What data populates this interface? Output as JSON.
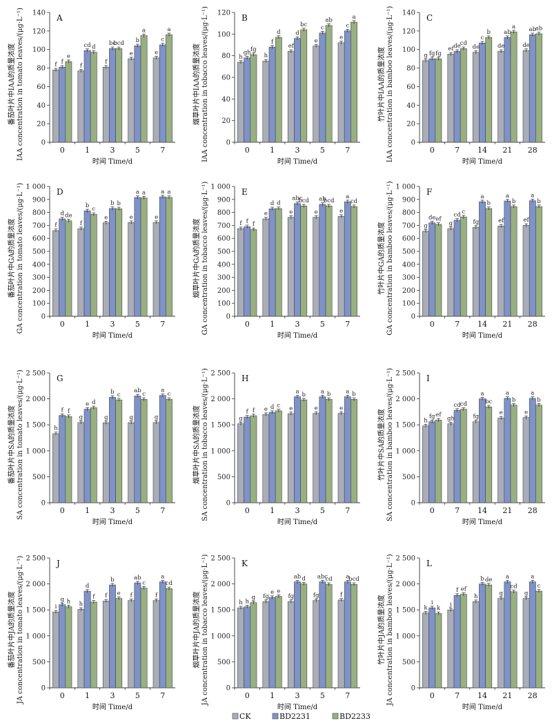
{
  "colors": {
    "CK": "#a9adb8",
    "BD2231": "#7f93c9",
    "BD2233": "#98b081"
  },
  "legend": [
    "CK",
    "BD2231",
    "BD2233"
  ],
  "chart_data": [
    {
      "panel": "A",
      "type": "bar",
      "categories": [
        "0",
        "1",
        "3",
        "5",
        "7"
      ],
      "ylim": [
        0,
        140
      ],
      "yticks": [
        0,
        20,
        40,
        60,
        80,
        100,
        120,
        140
      ],
      "ytick_labels": [
        "0",
        "20",
        "40",
        "60",
        "80",
        "100",
        "120",
        "140"
      ],
      "ylabel_cn": "番茄叶片中IAA的质量浓度",
      "ylabel_en": "IAA concentration in tomato leaves/(μg·L⁻¹)",
      "xlabel": "时间 Time/d",
      "series": [
        {
          "name": "CK",
          "values": [
            78,
            77,
            81,
            90,
            91
          ],
          "letters": [
            "f",
            "f",
            "f",
            "e",
            "e"
          ]
        },
        {
          "name": "BD2231",
          "values": [
            81,
            99,
            101,
            104,
            105
          ],
          "letters": [
            "f",
            "cd",
            "bc",
            "b",
            "c"
          ]
        },
        {
          "name": "BD2233",
          "values": [
            87,
            97,
            101,
            115,
            116
          ],
          "letters": [
            "e",
            "d",
            "bcd",
            "a",
            "a"
          ]
        }
      ]
    },
    {
      "panel": "B",
      "type": "bar",
      "categories": [
        "0",
        "1",
        "3",
        "5",
        "7"
      ],
      "ylim": [
        0,
        120
      ],
      "yticks": [
        0,
        20,
        40,
        60,
        80,
        100,
        120
      ],
      "ytick_labels": [
        "0",
        "20",
        "40",
        "60",
        "80",
        "100",
        "120"
      ],
      "ylabel_cn": "烟草叶片中IAA的质量浓度",
      "ylabel_en": "IAA concentration in tobacco leaves/(μg·L⁻¹)",
      "xlabel": "时间 Time/d",
      "series": [
        {
          "name": "CK",
          "values": [
            74,
            75,
            84,
            89,
            92
          ],
          "letters": [
            "h",
            "h",
            "ef",
            "e",
            "e"
          ]
        },
        {
          "name": "BD2231",
          "values": [
            78,
            88,
            96,
            101,
            103
          ],
          "letters": [
            "gh",
            "f",
            "d",
            "c",
            "c"
          ]
        },
        {
          "name": "BD2233",
          "values": [
            81,
            97,
            104,
            108,
            111
          ],
          "letters": [
            "fg",
            "d",
            "bc",
            "ab",
            "a"
          ]
        }
      ]
    },
    {
      "panel": "C",
      "type": "bar",
      "categories": [
        "0",
        "7",
        "14",
        "21",
        "28"
      ],
      "ylim": [
        0,
        140
      ],
      "yticks": [
        0,
        20,
        40,
        60,
        80,
        100,
        120,
        140
      ],
      "ytick_labels": [
        "0",
        "20",
        "40",
        "60",
        "80",
        "100",
        "120",
        "140"
      ],
      "ylabel_cn": "竹叶片中IAA的质量浓度",
      "ylabel_en": "IAA concentration in bamboo leaves/(μg·L⁻¹)",
      "xlabel": "时间 Time/d",
      "series": [
        {
          "name": "CK",
          "values": [
            88,
            95,
            97,
            98,
            99
          ],
          "letters": [
            "g",
            "ef",
            "de",
            "de",
            "de"
          ]
        },
        {
          "name": "BD2231",
          "values": [
            90,
            98,
            107,
            113,
            116
          ],
          "letters": [
            "fg",
            "de",
            "c",
            "ab",
            "ab"
          ]
        },
        {
          "name": "BD2233",
          "values": [
            90,
            101,
            113,
            119,
            117
          ],
          "letters": [
            "fg",
            "cd",
            "b",
            "a",
            "ab"
          ]
        }
      ]
    },
    {
      "panel": "D",
      "type": "bar",
      "categories": [
        "0",
        "1",
        "3",
        "5",
        "7"
      ],
      "ylim": [
        0,
        1000
      ],
      "yticks": [
        0,
        100,
        200,
        300,
        400,
        500,
        600,
        700,
        800,
        900,
        1000
      ],
      "ytick_labels": [
        "0",
        "100",
        "200",
        "300",
        "400",
        "500",
        "600",
        "700",
        "800",
        "900",
        "1 000"
      ],
      "ylabel_cn": "番茄叶片中GA的质量浓度",
      "ylabel_en": "GA concentration in tomato leaves/(μg·L⁻¹)",
      "xlabel": "时间 Time/d",
      "series": [
        {
          "name": "CK",
          "values": [
            660,
            675,
            720,
            722,
            723
          ],
          "letters": [
            "f",
            "f",
            "e",
            "e",
            "e"
          ]
        },
        {
          "name": "BD2231",
          "values": [
            750,
            812,
            830,
            915,
            920
          ],
          "letters": [
            "d",
            "b",
            "b",
            "a",
            "a"
          ]
        },
        {
          "name": "BD2233",
          "values": [
            735,
            785,
            828,
            912,
            915
          ],
          "letters": [
            "de",
            "c",
            "b",
            "a",
            "a"
          ]
        }
      ]
    },
    {
      "panel": "E",
      "type": "bar",
      "categories": [
        "0",
        "1",
        "3",
        "5",
        "7"
      ],
      "ylim": [
        0,
        1000
      ],
      "yticks": [
        0,
        100,
        200,
        300,
        400,
        500,
        600,
        700,
        800,
        900,
        1000
      ],
      "ytick_labels": [
        "0",
        "100",
        "200",
        "300",
        "400",
        "500",
        "600",
        "700",
        "800",
        "900",
        "1 000"
      ],
      "ylabel_cn": "烟草叶片中GA的质量浓度",
      "ylabel_en": "GA concentration in tobacco leaves/(μg·L⁻¹)",
      "xlabel": "时间 Time/d",
      "series": [
        {
          "name": "CK",
          "values": [
            675,
            750,
            762,
            762,
            770
          ],
          "letters": [
            "f",
            "e",
            "e",
            "e",
            "e"
          ]
        },
        {
          "name": "BD2231",
          "values": [
            690,
            828,
            868,
            862,
            882
          ],
          "letters": [
            "f",
            "d",
            "abc",
            "ab",
            "a"
          ]
        },
        {
          "name": "BD2233",
          "values": [
            668,
            830,
            850,
            850,
            845
          ],
          "letters": [
            "f",
            "d",
            "bcd",
            "bcd",
            "cd"
          ]
        }
      ]
    },
    {
      "panel": "F",
      "type": "bar",
      "categories": [
        "0",
        "7",
        "14",
        "21",
        "28"
      ],
      "ylim": [
        0,
        1000
      ],
      "yticks": [
        0,
        100,
        200,
        300,
        400,
        500,
        600,
        700,
        800,
        900,
        1000
      ],
      "ytick_labels": [
        "0",
        "100",
        "200",
        "300",
        "400",
        "500",
        "600",
        "700",
        "800",
        "900",
        "1 000"
      ],
      "ylabel_cn": "竹叶片中GA的质量浓度",
      "ylabel_en": "GA concentration in bamboo leaves/(μg·L⁻¹)",
      "xlabel": "时间 Time/d",
      "series": [
        {
          "name": "CK",
          "values": [
            655,
            675,
            685,
            695,
            700
          ],
          "letters": [
            "g",
            "g",
            "fg",
            "ef",
            "ef"
          ]
        },
        {
          "name": "BD2231",
          "values": [
            720,
            740,
            882,
            888,
            890
          ],
          "letters": [
            "de",
            "cd",
            "a",
            "a",
            "a"
          ]
        },
        {
          "name": "BD2233",
          "values": [
            708,
            765,
            830,
            845,
            845
          ],
          "letters": [
            "ef",
            "c",
            "b",
            "b",
            "b"
          ]
        }
      ]
    },
    {
      "panel": "G",
      "type": "bar",
      "categories": [
        "0",
        "1",
        "3",
        "5",
        "7"
      ],
      "ylim": [
        0,
        2500
      ],
      "yticks": [
        0,
        500,
        1000,
        1500,
        2000,
        2500
      ],
      "ytick_labels": [
        "0",
        "500",
        "1 000",
        "1 500",
        "2 000",
        "2 500"
      ],
      "ylabel_cn": "番茄叶片中SA的质量浓度",
      "ylabel_en": "SA concentration in tomato leaves/(μg·L⁻¹)",
      "xlabel": "时间 Time/d",
      "series": [
        {
          "name": "CK",
          "values": [
            1330,
            1545,
            1540,
            1540,
            1545
          ],
          "letters": [
            "h",
            "g",
            "g",
            "g",
            "g"
          ]
        },
        {
          "name": "BD2231",
          "values": [
            1680,
            1800,
            2030,
            2055,
            2065
          ],
          "letters": [
            "f",
            "e",
            "b",
            "ab",
            "a"
          ]
        },
        {
          "name": "BD2233",
          "values": [
            1660,
            1830,
            1980,
            1990,
            1990
          ],
          "letters": [
            "f",
            "d",
            "c",
            "c",
            "c"
          ]
        }
      ]
    },
    {
      "panel": "H",
      "type": "bar",
      "categories": [
        "0",
        "1",
        "3",
        "5",
        "7"
      ],
      "ylim": [
        0,
        2500
      ],
      "yticks": [
        0,
        500,
        1000,
        1500,
        2000,
        2500
      ],
      "ytick_labels": [
        "0",
        "500",
        "1 000",
        "1 500",
        "2 000",
        "2 500"
      ],
      "ylabel_cn": "烟草叶片中SA的质量浓度",
      "ylabel_en": "SA concentration in tobacco leaves/(μg·L⁻¹)",
      "xlabel": "时间 Time/d",
      "series": [
        {
          "name": "CK",
          "values": [
            1520,
            1700,
            1715,
            1720,
            1720
          ],
          "letters": [
            "g",
            "e",
            "e",
            "e",
            "e"
          ]
        },
        {
          "name": "BD2231",
          "values": [
            1650,
            1740,
            2040,
            2040,
            2040
          ],
          "letters": [
            "f",
            "d",
            "a",
            "a",
            "a"
          ]
        },
        {
          "name": "BD2233",
          "values": [
            1675,
            1770,
            1980,
            1990,
            1990
          ],
          "letters": [
            "f",
            "c",
            "b",
            "b",
            "b"
          ]
        }
      ]
    },
    {
      "panel": "I",
      "type": "bar",
      "categories": [
        "0",
        "7",
        "14",
        "21",
        "28"
      ],
      "ylim": [
        0,
        2500
      ],
      "yticks": [
        0,
        500,
        1000,
        1500,
        2000,
        2500
      ],
      "ytick_labels": [
        "0",
        "500",
        "1 000",
        "1 500",
        "2 000",
        "2 500"
      ],
      "ylabel_cn": "竹叶片中SA的质量浓度",
      "ylabel_en": "SA concentration in bamboo leaves/(μg·L⁻¹)",
      "xlabel": "时间 Time/d",
      "series": [
        {
          "name": "CK",
          "values": [
            1480,
            1520,
            1560,
            1630,
            1640
          ],
          "letters": [
            "h",
            "gh",
            "fg",
            "e",
            "e"
          ]
        },
        {
          "name": "BD2231",
          "values": [
            1560,
            1780,
            2000,
            2010,
            2010
          ],
          "letters": [
            "fg",
            "cd",
            "a",
            "a",
            "a"
          ]
        },
        {
          "name": "BD2233",
          "values": [
            1590,
            1800,
            1845,
            1880,
            1880
          ],
          "letters": [
            "ef",
            "cd",
            "bc",
            "b",
            "b"
          ]
        }
      ]
    },
    {
      "panel": "J",
      "type": "bar",
      "categories": [
        "0",
        "1",
        "3",
        "5",
        "7"
      ],
      "ylim": [
        0,
        2500
      ],
      "yticks": [
        0,
        500,
        1000,
        1500,
        2000,
        2500
      ],
      "ytick_labels": [
        "0",
        "500",
        "1 000",
        "1 500",
        "2 000",
        "2 500"
      ],
      "ylabel_cn": "番茄叶片中JA的质量浓度",
      "ylabel_en": "JA concentration in tomato leaves/(μg·L⁻¹)",
      "xlabel": "时间 Time/d",
      "series": [
        {
          "name": "CK",
          "values": [
            1460,
            1510,
            1670,
            1680,
            1680
          ],
          "letters": [
            "i",
            "h",
            "f",
            "f",
            "f"
          ]
        },
        {
          "name": "BD2231",
          "values": [
            1600,
            1860,
            1980,
            2020,
            2040
          ],
          "letters": [
            "g",
            "d",
            "b",
            "ab",
            "a"
          ]
        },
        {
          "name": "BD2233",
          "values": [
            1560,
            1650,
            1720,
            1920,
            1910
          ],
          "letters": [
            "h",
            "f",
            "e",
            "c",
            "cd"
          ]
        }
      ]
    },
    {
      "panel": "K",
      "type": "bar",
      "categories": [
        "0",
        "1",
        "3",
        "5",
        "7"
      ],
      "ylim": [
        0,
        2500
      ],
      "yticks": [
        0,
        500,
        1000,
        1500,
        2000,
        2500
      ],
      "ytick_labels": [
        "0",
        "500",
        "1 000",
        "1 500",
        "2 000",
        "2 500"
      ],
      "ylabel_cn": "烟草叶片中JA的质量浓度",
      "ylabel_en": "JA concentration in tobacco leaves/(μg·L⁻¹)",
      "xlabel": "时间 Time/d",
      "series": [
        {
          "name": "CK",
          "values": [
            1540,
            1660,
            1660,
            1680,
            1690
          ],
          "letters": [
            "h",
            "fg",
            "fg",
            "fg",
            "f"
          ]
        },
        {
          "name": "BD2231",
          "values": [
            1560,
            1740,
            2040,
            2040,
            2040
          ],
          "letters": [
            "h",
            "e",
            "ab",
            "abc",
            "a"
          ]
        },
        {
          "name": "BD2233",
          "values": [
            1640,
            1760,
            2000,
            1990,
            1990
          ],
          "letters": [
            "g",
            "e",
            "d",
            "cd",
            "bcd"
          ]
        }
      ]
    },
    {
      "panel": "L",
      "type": "bar",
      "categories": [
        "0",
        "7",
        "14",
        "21",
        "28"
      ],
      "ylim": [
        0,
        2500
      ],
      "yticks": [
        0,
        500,
        1000,
        1500,
        2000,
        2500
      ],
      "ytick_labels": [
        "0",
        "500",
        "1 000",
        "1 500",
        "2 000",
        "2 500"
      ],
      "ylabel_cn": "竹叶片中JA的质量浓度",
      "ylabel_en": "JA concentration in bamboo leaves/(μg·L⁻¹)",
      "xlabel": "时间 Time/d",
      "series": [
        {
          "name": "CK",
          "values": [
            1440,
            1500,
            1660,
            1720,
            1720
          ],
          "letters": [
            "k",
            "j",
            "h",
            "g",
            "g"
          ]
        },
        {
          "name": "BD2231",
          "values": [
            1540,
            1780,
            2000,
            2040,
            2040
          ],
          "letters": [
            "i",
            "f",
            "b",
            "a",
            "a"
          ]
        },
        {
          "name": "BD2233",
          "values": [
            1430,
            1800,
            1980,
            1850,
            1860
          ],
          "letters": [
            "k",
            "ef",
            "de",
            "cd",
            "c"
          ]
        }
      ]
    }
  ]
}
